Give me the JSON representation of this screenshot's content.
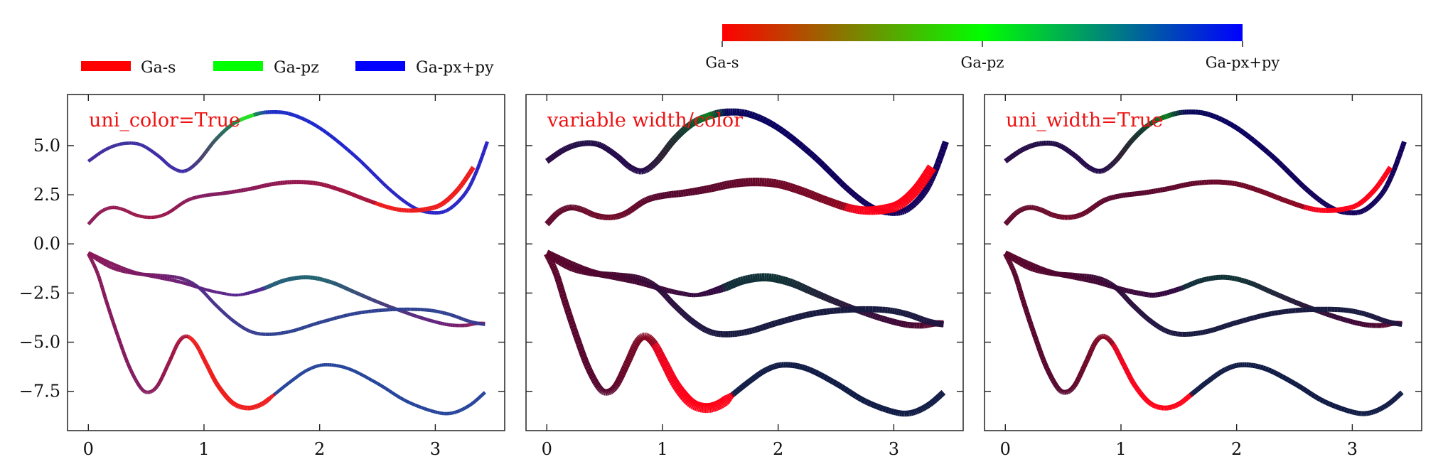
{
  "figure": {
    "colors": {
      "s": "#ff0000",
      "pz": "#00ff00",
      "pxpy": "#0000ff",
      "axis": "#222222",
      "title": "#ee1111"
    }
  },
  "legend": {
    "items": [
      {
        "label": "Ga-s",
        "color": "#ff0000"
      },
      {
        "label": "Ga-pz",
        "color": "#00ff00"
      },
      {
        "label": "Ga-px+py",
        "color": "#0000ff"
      }
    ]
  },
  "colorbar": {
    "labels": [
      "Ga-s",
      "Ga-pz",
      "Ga-px+py"
    ],
    "colors": [
      "#ff0000",
      "#00ff00",
      "#0000ff"
    ]
  },
  "chart_data": [
    {
      "type": "line",
      "title": "uni_color=True",
      "mode": "uni_color",
      "xlim": [
        -0.18,
        3.6
      ],
      "ylim": [
        -9.5,
        7.6
      ],
      "xticks": [
        0,
        1,
        2,
        3
      ],
      "xtick_labels": [
        "0",
        "1",
        "2",
        "3"
      ],
      "yticks": [
        5.0,
        2.5,
        0.0,
        -2.5,
        -5.0,
        -7.5
      ],
      "ytick_labels": [
        "5.0",
        "2.5",
        "0.0",
        "−2.5",
        "−5.0",
        "−7.5"
      ],
      "series_ref": "bands"
    },
    {
      "type": "line",
      "title": "variable width/color",
      "mode": "variable",
      "xlim": [
        -0.18,
        3.6
      ],
      "ylim": [
        -9.5,
        7.6
      ],
      "xticks": [
        0,
        1,
        2,
        3
      ],
      "xtick_labels": [
        "0",
        "1",
        "2",
        "3"
      ],
      "yticks": [
        5.0,
        2.5,
        0.0,
        -2.5,
        -5.0,
        -7.5
      ],
      "ytick_labels": [
        "",
        "",
        "",
        "",
        "",
        ""
      ],
      "series_ref": "bands"
    },
    {
      "type": "line",
      "title": "uni_width=True",
      "mode": "uni_width",
      "xlim": [
        -0.18,
        3.6
      ],
      "ylim": [
        -9.5,
        7.6
      ],
      "xticks": [
        0,
        1,
        2,
        3
      ],
      "xtick_labels": [
        "0",
        "1",
        "2",
        "3"
      ],
      "yticks": [
        5.0,
        2.5,
        0.0,
        -2.5,
        -5.0,
        -7.5
      ],
      "ytick_labels": [
        "",
        "",
        "",
        "",
        "",
        ""
      ],
      "series_ref": "bands"
    }
  ],
  "bands": [
    {
      "name": "band-1",
      "points": [
        [
          0,
          4.2
        ],
        [
          0.15,
          4.8
        ],
        [
          0.3,
          5.1
        ],
        [
          0.45,
          5.05
        ],
        [
          0.6,
          4.5
        ],
        [
          0.72,
          3.9
        ],
        [
          0.83,
          3.7
        ],
        [
          0.95,
          4.2
        ],
        [
          1.1,
          5.3
        ],
        [
          1.25,
          6.1
        ],
        [
          1.4,
          6.5
        ],
        [
          1.55,
          6.7
        ],
        [
          1.75,
          6.6
        ],
        [
          2.0,
          5.9
        ],
        [
          2.3,
          4.5
        ],
        [
          2.6,
          2.8
        ],
        [
          2.8,
          1.9
        ],
        [
          2.95,
          1.6
        ],
        [
          3.1,
          1.7
        ],
        [
          3.25,
          2.5
        ],
        [
          3.35,
          3.6
        ],
        [
          3.45,
          5.2
        ]
      ],
      "weights": [
        [
          0,
          0.25,
          0.05,
          0.7
        ],
        [
          0.3,
          0.2,
          0.1,
          0.7
        ],
        [
          0.6,
          0.2,
          0.05,
          0.75
        ],
        [
          0.83,
          0.2,
          0.05,
          0.75
        ],
        [
          1.0,
          0.3,
          0.25,
          0.45
        ],
        [
          1.2,
          0.1,
          0.5,
          0.4
        ],
        [
          1.4,
          0.05,
          0.85,
          0.1
        ],
        [
          1.55,
          0.05,
          0.05,
          0.9
        ],
        [
          2.0,
          0.05,
          0.0,
          0.95
        ],
        [
          2.6,
          0.1,
          0.0,
          0.9
        ],
        [
          2.95,
          0.1,
          0.0,
          0.9
        ],
        [
          3.2,
          0.1,
          0.0,
          0.9
        ],
        [
          3.45,
          0.1,
          0.0,
          0.9
        ]
      ],
      "widths": [
        [
          0,
          0.5
        ],
        [
          0.6,
          0.5
        ],
        [
          1.0,
          0.6
        ],
        [
          1.5,
          0.7
        ],
        [
          2.0,
          0.55
        ],
        [
          2.6,
          0.5
        ],
        [
          3.0,
          0.55
        ],
        [
          3.45,
          0.6
        ]
      ]
    },
    {
      "name": "band-2",
      "points": [
        [
          0,
          1.0
        ],
        [
          0.1,
          1.6
        ],
        [
          0.2,
          1.85
        ],
        [
          0.3,
          1.75
        ],
        [
          0.42,
          1.45
        ],
        [
          0.55,
          1.35
        ],
        [
          0.68,
          1.55
        ],
        [
          0.85,
          2.2
        ],
        [
          1.0,
          2.45
        ],
        [
          1.2,
          2.6
        ],
        [
          1.4,
          2.8
        ],
        [
          1.6,
          3.05
        ],
        [
          1.8,
          3.15
        ],
        [
          2.0,
          3.05
        ],
        [
          2.2,
          2.7
        ],
        [
          2.4,
          2.25
        ],
        [
          2.6,
          1.85
        ],
        [
          2.75,
          1.7
        ],
        [
          2.9,
          1.75
        ],
        [
          3.05,
          2.0
        ],
        [
          3.2,
          2.8
        ],
        [
          3.33,
          3.9
        ]
      ],
      "weights": [
        [
          0,
          0.6,
          0.05,
          0.35
        ],
        [
          0.55,
          0.7,
          0.05,
          0.25
        ],
        [
          1.0,
          0.55,
          0.05,
          0.4
        ],
        [
          1.8,
          0.65,
          0.05,
          0.3
        ],
        [
          2.4,
          0.75,
          0.05,
          0.2
        ],
        [
          2.75,
          0.95,
          0.0,
          0.05
        ],
        [
          3.33,
          1.0,
          0.0,
          0.0
        ]
      ],
      "widths": [
        [
          0,
          0.55
        ],
        [
          0.55,
          0.5
        ],
        [
          1.0,
          0.6
        ],
        [
          1.8,
          0.85
        ],
        [
          2.4,
          0.75
        ],
        [
          2.75,
          0.8
        ],
        [
          3.0,
          1.0
        ],
        [
          3.33,
          1.0
        ]
      ]
    },
    {
      "name": "band-3",
      "points": [
        [
          0,
          -0.45
        ],
        [
          0.2,
          -1.0
        ],
        [
          0.4,
          -1.45
        ],
        [
          0.6,
          -1.7
        ],
        [
          0.8,
          -1.95
        ],
        [
          1.0,
          -2.3
        ],
        [
          1.15,
          -2.5
        ],
        [
          1.3,
          -2.6
        ],
        [
          1.5,
          -2.3
        ],
        [
          1.7,
          -1.85
        ],
        [
          1.9,
          -1.7
        ],
        [
          2.1,
          -1.95
        ],
        [
          2.3,
          -2.45
        ],
        [
          2.5,
          -2.95
        ],
        [
          2.7,
          -3.4
        ],
        [
          2.9,
          -3.8
        ],
        [
          3.1,
          -4.1
        ],
        [
          3.25,
          -4.15
        ],
        [
          3.35,
          -4.05
        ],
        [
          3.43,
          -4.05
        ]
      ],
      "weights": [
        [
          0,
          0.6,
          0.05,
          0.35
        ],
        [
          0.6,
          0.5,
          0.05,
          0.45
        ],
        [
          1.2,
          0.35,
          0.05,
          0.6
        ],
        [
          1.5,
          0.3,
          0.05,
          0.65
        ],
        [
          1.55,
          0.1,
          0.35,
          0.55
        ],
        [
          2.0,
          0.1,
          0.4,
          0.5
        ],
        [
          2.5,
          0.25,
          0.2,
          0.55
        ],
        [
          3.0,
          0.4,
          0.05,
          0.55
        ],
        [
          3.35,
          0.6,
          0.05,
          0.35
        ],
        [
          3.43,
          0.8,
          0.0,
          0.2
        ]
      ],
      "widths": [
        [
          0,
          0.6
        ],
        [
          0.8,
          0.55
        ],
        [
          1.3,
          0.3
        ],
        [
          1.55,
          0.8
        ],
        [
          2.0,
          0.8
        ],
        [
          2.6,
          0.55
        ],
        [
          3.2,
          0.55
        ],
        [
          3.43,
          0.6
        ]
      ]
    },
    {
      "name": "band-4",
      "points": [
        [
          0,
          -0.5
        ],
        [
          0.2,
          -1.2
        ],
        [
          0.4,
          -1.5
        ],
        [
          0.6,
          -1.6
        ],
        [
          0.8,
          -1.75
        ],
        [
          0.95,
          -2.2
        ],
        [
          1.1,
          -3.1
        ],
        [
          1.25,
          -3.9
        ],
        [
          1.4,
          -4.45
        ],
        [
          1.55,
          -4.6
        ],
        [
          1.75,
          -4.45
        ],
        [
          2.0,
          -4.0
        ],
        [
          2.3,
          -3.55
        ],
        [
          2.6,
          -3.35
        ],
        [
          2.9,
          -3.35
        ],
        [
          3.1,
          -3.55
        ],
        [
          3.3,
          -3.95
        ],
        [
          3.43,
          -4.1
        ]
      ],
      "weights": [
        [
          0,
          0.6,
          0.05,
          0.35
        ],
        [
          0.6,
          0.5,
          0.05,
          0.45
        ],
        [
          1.0,
          0.3,
          0.1,
          0.6
        ],
        [
          1.3,
          0.2,
          0.15,
          0.65
        ],
        [
          1.6,
          0.15,
          0.2,
          0.65
        ],
        [
          2.2,
          0.15,
          0.2,
          0.65
        ],
        [
          3.0,
          0.15,
          0.2,
          0.65
        ],
        [
          3.43,
          0.2,
          0.15,
          0.65
        ]
      ],
      "widths": [
        [
          0,
          0.6
        ],
        [
          1.0,
          0.5
        ],
        [
          1.6,
          0.55
        ],
        [
          2.4,
          0.55
        ],
        [
          3.43,
          0.55
        ]
      ]
    },
    {
      "name": "band-5",
      "points": [
        [
          0,
          -0.5
        ],
        [
          0.08,
          -1.5
        ],
        [
          0.16,
          -3.0
        ],
        [
          0.25,
          -4.6
        ],
        [
          0.35,
          -6.2
        ],
        [
          0.45,
          -7.3
        ],
        [
          0.52,
          -7.55
        ],
        [
          0.6,
          -7.2
        ],
        [
          0.7,
          -6.0
        ],
        [
          0.78,
          -5.0
        ],
        [
          0.85,
          -4.7
        ],
        [
          0.93,
          -5.1
        ],
        [
          1.02,
          -6.1
        ],
        [
          1.12,
          -7.2
        ],
        [
          1.25,
          -8.1
        ],
        [
          1.38,
          -8.35
        ],
        [
          1.5,
          -8.15
        ],
        [
          1.6,
          -7.7
        ],
        [
          1.75,
          -7.0
        ],
        [
          1.9,
          -6.4
        ],
        [
          2.05,
          -6.15
        ],
        [
          2.25,
          -6.35
        ],
        [
          2.5,
          -7.1
        ],
        [
          2.75,
          -8.0
        ],
        [
          3.0,
          -8.55
        ],
        [
          3.15,
          -8.6
        ],
        [
          3.3,
          -8.2
        ],
        [
          3.43,
          -7.55
        ]
      ],
      "weights": [
        [
          0,
          0.6,
          0.05,
          0.35
        ],
        [
          0.5,
          0.55,
          0.05,
          0.4
        ],
        [
          0.8,
          0.75,
          0.05,
          0.2
        ],
        [
          1.0,
          0.9,
          0.0,
          0.1
        ],
        [
          1.4,
          1.0,
          0.0,
          0.0
        ],
        [
          1.6,
          0.95,
          0.0,
          0.05
        ],
        [
          1.62,
          0.1,
          0.2,
          0.7
        ],
        [
          2.2,
          0.1,
          0.2,
          0.7
        ],
        [
          3.0,
          0.1,
          0.2,
          0.7
        ],
        [
          3.43,
          0.1,
          0.2,
          0.7
        ]
      ],
      "widths": [
        [
          0,
          0.6
        ],
        [
          0.5,
          0.6
        ],
        [
          0.85,
          0.7
        ],
        [
          1.2,
          1.0
        ],
        [
          1.55,
          1.0
        ],
        [
          1.6,
          0.5
        ],
        [
          2.5,
          0.5
        ],
        [
          3.43,
          0.55
        ]
      ]
    }
  ]
}
